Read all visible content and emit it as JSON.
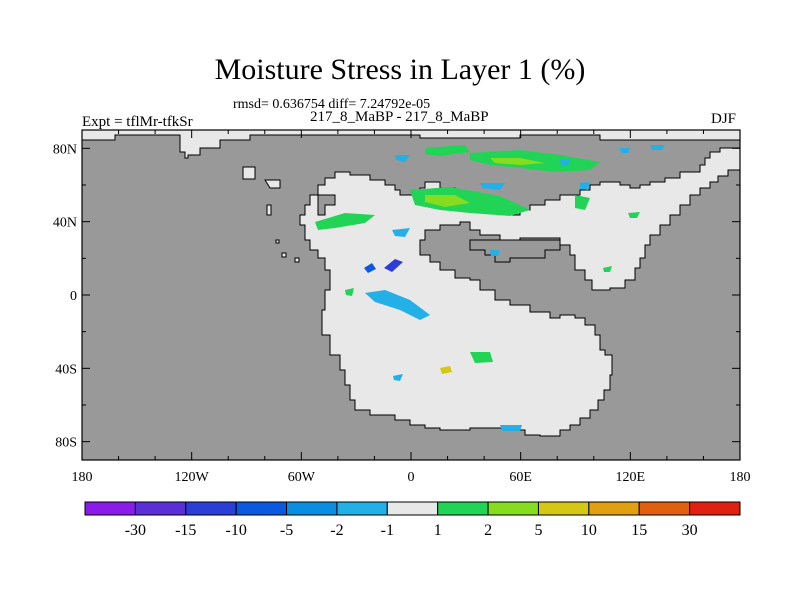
{
  "title": "Moisture Stress in Layer 1 (%)",
  "stats": "rmsd= 0.636754 diff= 7.24792e-05",
  "subtitle": "217_8_MaBP - 217_8_MaBP",
  "experiment": "Expt = tflMr-tfkSr",
  "season": "DJF",
  "chart_data": {
    "type": "heatmap",
    "x_axis": {
      "range": [
        -180,
        180
      ],
      "ticks": [
        -180,
        -120,
        -60,
        0,
        60,
        120,
        180
      ],
      "tick_labels": [
        "180",
        "120W",
        "60W",
        "0",
        "60E",
        "120E",
        "180"
      ]
    },
    "y_axis": {
      "range": [
        -90,
        90
      ],
      "ticks": [
        80,
        40,
        0,
        -40,
        -80
      ],
      "tick_labels": [
        "80N",
        "40N",
        "0",
        "40S",
        "80S"
      ]
    },
    "colorbar": {
      "position": "bottom",
      "colors": [
        "#8a1be8",
        "#5a2fd8",
        "#2c3ed8",
        "#0a59e0",
        "#0a8fe0",
        "#22b0e6",
        "#e8e8e8",
        "#22d455",
        "#86dc1e",
        "#d4c814",
        "#e0a010",
        "#e06010",
        "#e02010"
      ],
      "labels": [
        "-30",
        "-15",
        "-10",
        "-5",
        "-2",
        "-1",
        "1",
        "2",
        "5",
        "10",
        "15",
        "30"
      ]
    },
    "ocean_color": "#999999",
    "land_color": "#e8e8e8"
  }
}
